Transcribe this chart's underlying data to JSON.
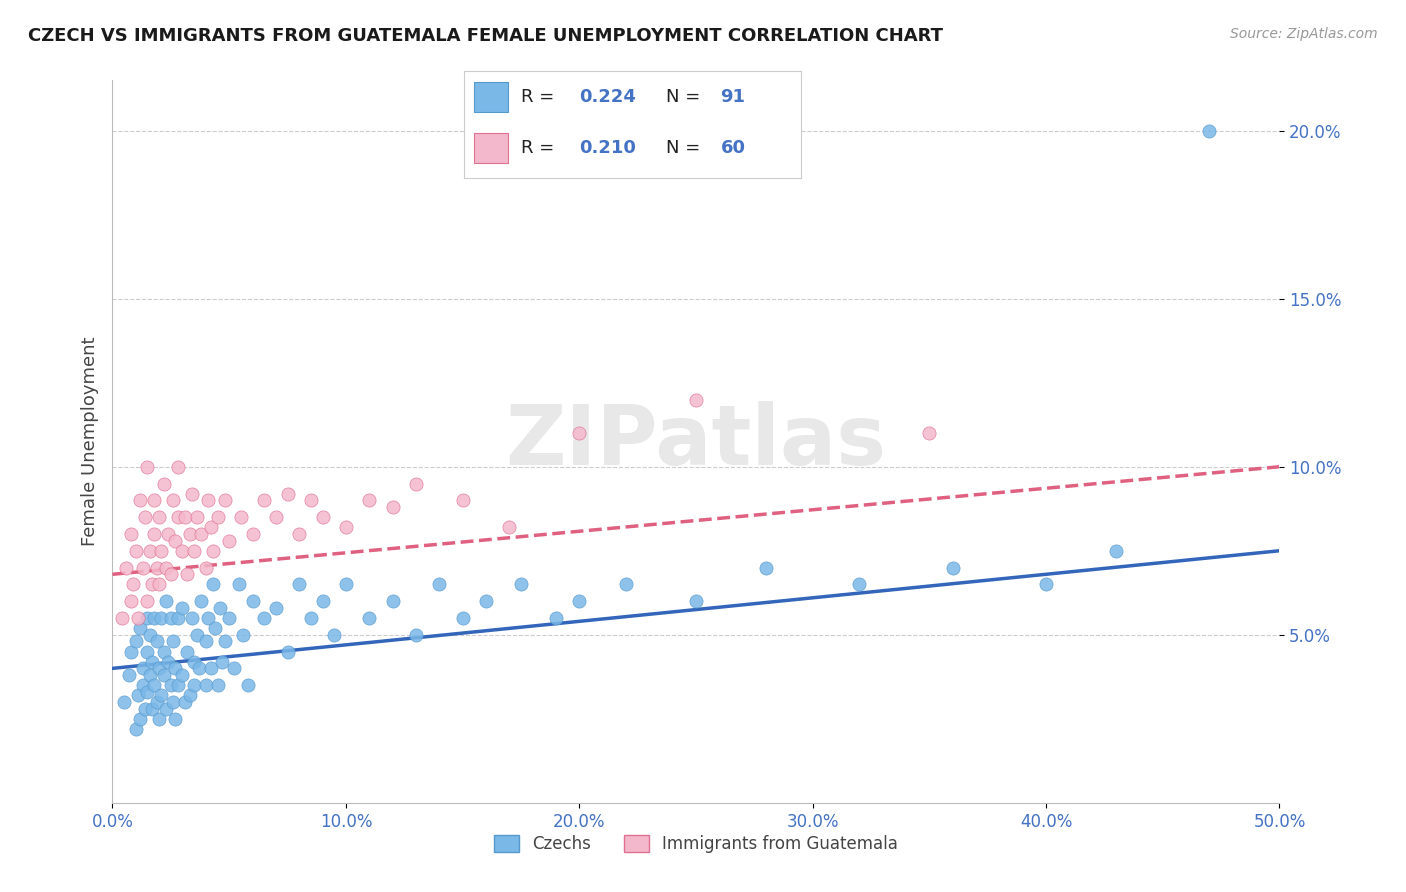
{
  "title": "CZECH VS IMMIGRANTS FROM GUATEMALA FEMALE UNEMPLOYMENT CORRELATION CHART",
  "source": "Source: ZipAtlas.com",
  "ylabel": "Female Unemployment",
  "xmin": 0.0,
  "xmax": 0.5,
  "ymin": 0.0,
  "ymax": 0.215,
  "xticks": [
    0.0,
    0.1,
    0.2,
    0.3,
    0.4,
    0.5
  ],
  "yticks": [
    0.05,
    0.1,
    0.15,
    0.2
  ],
  "series": [
    {
      "name": "Czechs",
      "color": "#7ab8e8",
      "border_color": "#5599cc",
      "R": 0.224,
      "N": 91,
      "trend_color": "#3366bb",
      "trend_style": "solid",
      "trend_start_y": 0.04,
      "trend_end_y": 0.075
    },
    {
      "name": "Immigrants from Guatemala",
      "color": "#f4b8cc",
      "border_color": "#e07090",
      "R": 0.21,
      "N": 60,
      "trend_color": "#e06080",
      "trend_style": "dashed",
      "trend_start_y": 0.068,
      "trend_end_y": 0.1
    }
  ],
  "czechs_x": [
    0.005,
    0.007,
    0.008,
    0.01,
    0.01,
    0.011,
    0.012,
    0.012,
    0.013,
    0.013,
    0.014,
    0.015,
    0.015,
    0.015,
    0.016,
    0.016,
    0.017,
    0.017,
    0.018,
    0.018,
    0.019,
    0.019,
    0.02,
    0.02,
    0.021,
    0.021,
    0.022,
    0.022,
    0.023,
    0.023,
    0.024,
    0.025,
    0.025,
    0.026,
    0.026,
    0.027,
    0.027,
    0.028,
    0.028,
    0.03,
    0.03,
    0.031,
    0.032,
    0.033,
    0.034,
    0.035,
    0.035,
    0.036,
    0.037,
    0.038,
    0.04,
    0.04,
    0.041,
    0.042,
    0.043,
    0.044,
    0.045,
    0.046,
    0.047,
    0.048,
    0.05,
    0.052,
    0.054,
    0.056,
    0.058,
    0.06,
    0.065,
    0.07,
    0.075,
    0.08,
    0.085,
    0.09,
    0.095,
    0.1,
    0.11,
    0.12,
    0.13,
    0.14,
    0.15,
    0.16,
    0.175,
    0.19,
    0.2,
    0.22,
    0.25,
    0.28,
    0.32,
    0.36,
    0.4,
    0.43,
    0.47
  ],
  "czechs_y": [
    0.03,
    0.038,
    0.045,
    0.022,
    0.048,
    0.032,
    0.025,
    0.052,
    0.04,
    0.035,
    0.028,
    0.055,
    0.033,
    0.045,
    0.038,
    0.05,
    0.028,
    0.042,
    0.035,
    0.055,
    0.03,
    0.048,
    0.025,
    0.04,
    0.032,
    0.055,
    0.045,
    0.038,
    0.028,
    0.06,
    0.042,
    0.035,
    0.055,
    0.03,
    0.048,
    0.04,
    0.025,
    0.055,
    0.035,
    0.038,
    0.058,
    0.03,
    0.045,
    0.032,
    0.055,
    0.042,
    0.035,
    0.05,
    0.04,
    0.06,
    0.048,
    0.035,
    0.055,
    0.04,
    0.065,
    0.052,
    0.035,
    0.058,
    0.042,
    0.048,
    0.055,
    0.04,
    0.065,
    0.05,
    0.035,
    0.06,
    0.055,
    0.058,
    0.045,
    0.065,
    0.055,
    0.06,
    0.05,
    0.065,
    0.055,
    0.06,
    0.05,
    0.065,
    0.055,
    0.06,
    0.065,
    0.055,
    0.06,
    0.065,
    0.06,
    0.07,
    0.065,
    0.07,
    0.065,
    0.075,
    0.2
  ],
  "guatemala_x": [
    0.004,
    0.006,
    0.008,
    0.008,
    0.009,
    0.01,
    0.011,
    0.012,
    0.013,
    0.014,
    0.015,
    0.015,
    0.016,
    0.017,
    0.018,
    0.018,
    0.019,
    0.02,
    0.02,
    0.021,
    0.022,
    0.023,
    0.024,
    0.025,
    0.026,
    0.027,
    0.028,
    0.028,
    0.03,
    0.031,
    0.032,
    0.033,
    0.034,
    0.035,
    0.036,
    0.038,
    0.04,
    0.041,
    0.042,
    0.043,
    0.045,
    0.048,
    0.05,
    0.055,
    0.06,
    0.065,
    0.07,
    0.075,
    0.08,
    0.085,
    0.09,
    0.1,
    0.11,
    0.12,
    0.13,
    0.15,
    0.17,
    0.2,
    0.25,
    0.35
  ],
  "guatemala_y": [
    0.055,
    0.07,
    0.06,
    0.08,
    0.065,
    0.075,
    0.055,
    0.09,
    0.07,
    0.085,
    0.06,
    0.1,
    0.075,
    0.065,
    0.09,
    0.08,
    0.07,
    0.065,
    0.085,
    0.075,
    0.095,
    0.07,
    0.08,
    0.068,
    0.09,
    0.078,
    0.085,
    0.1,
    0.075,
    0.085,
    0.068,
    0.08,
    0.092,
    0.075,
    0.085,
    0.08,
    0.07,
    0.09,
    0.082,
    0.075,
    0.085,
    0.09,
    0.078,
    0.085,
    0.08,
    0.09,
    0.085,
    0.092,
    0.08,
    0.09,
    0.085,
    0.082,
    0.09,
    0.088,
    0.095,
    0.09,
    0.082,
    0.11,
    0.12,
    0.11
  ],
  "background_color": "#ffffff",
  "grid_color": "#cccccc",
  "title_color": "#1a1a1a",
  "axis_color": "#4472c4",
  "text_color": "#444444",
  "watermark_text": "ZIPatlas",
  "watermark_color": "#e8e8e8"
}
